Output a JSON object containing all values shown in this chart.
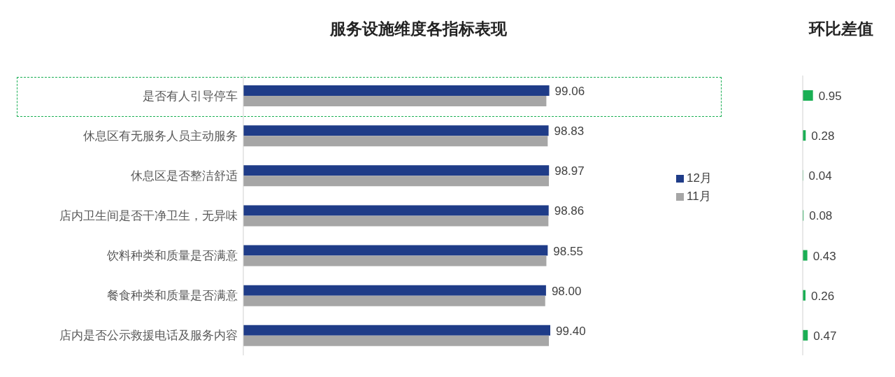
{
  "chart_data": [
    {
      "type": "bar",
      "orientation": "horizontal",
      "title": "服务设施维度各指标表现",
      "categories": [
        "是否有人引导停车",
        "休息区有无服务人员主动服务",
        "休息区是否整洁舒适",
        "店内卫生间是否干净卫生，无异味",
        "饮料种类和质量是否满意",
        "餐食种类和质量是否满意",
        "店内是否公示救援电话及服务内容"
      ],
      "series": [
        {
          "name": "12月",
          "color": "#1f3c88",
          "values": [
            99.06,
            98.83,
            98.97,
            98.86,
            98.55,
            98.0,
            99.4
          ],
          "value_labels": [
            "99.06",
            "98.83",
            "98.97",
            "98.86",
            "98.55",
            "98.00",
            "99.40"
          ]
        },
        {
          "name": "11月",
          "color": "#a6a6a6",
          "values": [
            98.11,
            98.55,
            98.93,
            98.78,
            98.12,
            97.74,
            98.93
          ]
        }
      ],
      "legend": "right"
    },
    {
      "type": "bar",
      "orientation": "horizontal",
      "title": "环比差值",
      "categories": [
        null,
        null,
        null,
        null,
        null,
        null,
        null
      ],
      "values": [
        0.95,
        0.28,
        0.04,
        0.08,
        0.43,
        0.26,
        0.47
      ],
      "color": "#1aaf54",
      "data_labels": true
    }
  ]
}
